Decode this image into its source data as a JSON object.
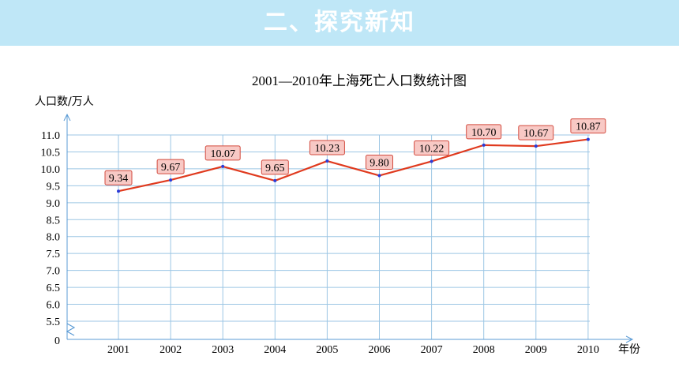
{
  "banner": {
    "title": "二、探究新知"
  },
  "chart_data": {
    "type": "line",
    "title": "2001—2010年上海死亡人口数统计图",
    "ylabel": "人口数/万人",
    "xlabel": "年份",
    "categories": [
      "2001",
      "2002",
      "2003",
      "2004",
      "2005",
      "2006",
      "2007",
      "2008",
      "2009",
      "2010"
    ],
    "series": [
      {
        "values": [
          9.34,
          9.67,
          10.07,
          9.65,
          10.23,
          9.8,
          10.22,
          10.7,
          10.67,
          10.87
        ]
      }
    ],
    "data_labels": [
      "9.34",
      "9.67",
      "10.07",
      "9.65",
      "10.23",
      "9.80",
      "10.22",
      "10.70",
      "10.67",
      "10.87"
    ],
    "y_ticks": [
      "11.0",
      "10.5",
      "10.0",
      "9.5",
      "9.0",
      "8.5",
      "8.0",
      "7.5",
      "7.0",
      "6.5",
      "6.0",
      "5.5"
    ],
    "y_zero_label": "0",
    "y_axis_break": true,
    "ylim": [
      5.5,
      11.0
    ],
    "grid": true,
    "colors": {
      "line": "#e03a1e",
      "grid": "#9cc6e4",
      "axis": "#5b9bd5",
      "marker": "#2a3bd8",
      "label_fill": "#f8c9c5",
      "label_stroke": "#d34b3f"
    }
  }
}
